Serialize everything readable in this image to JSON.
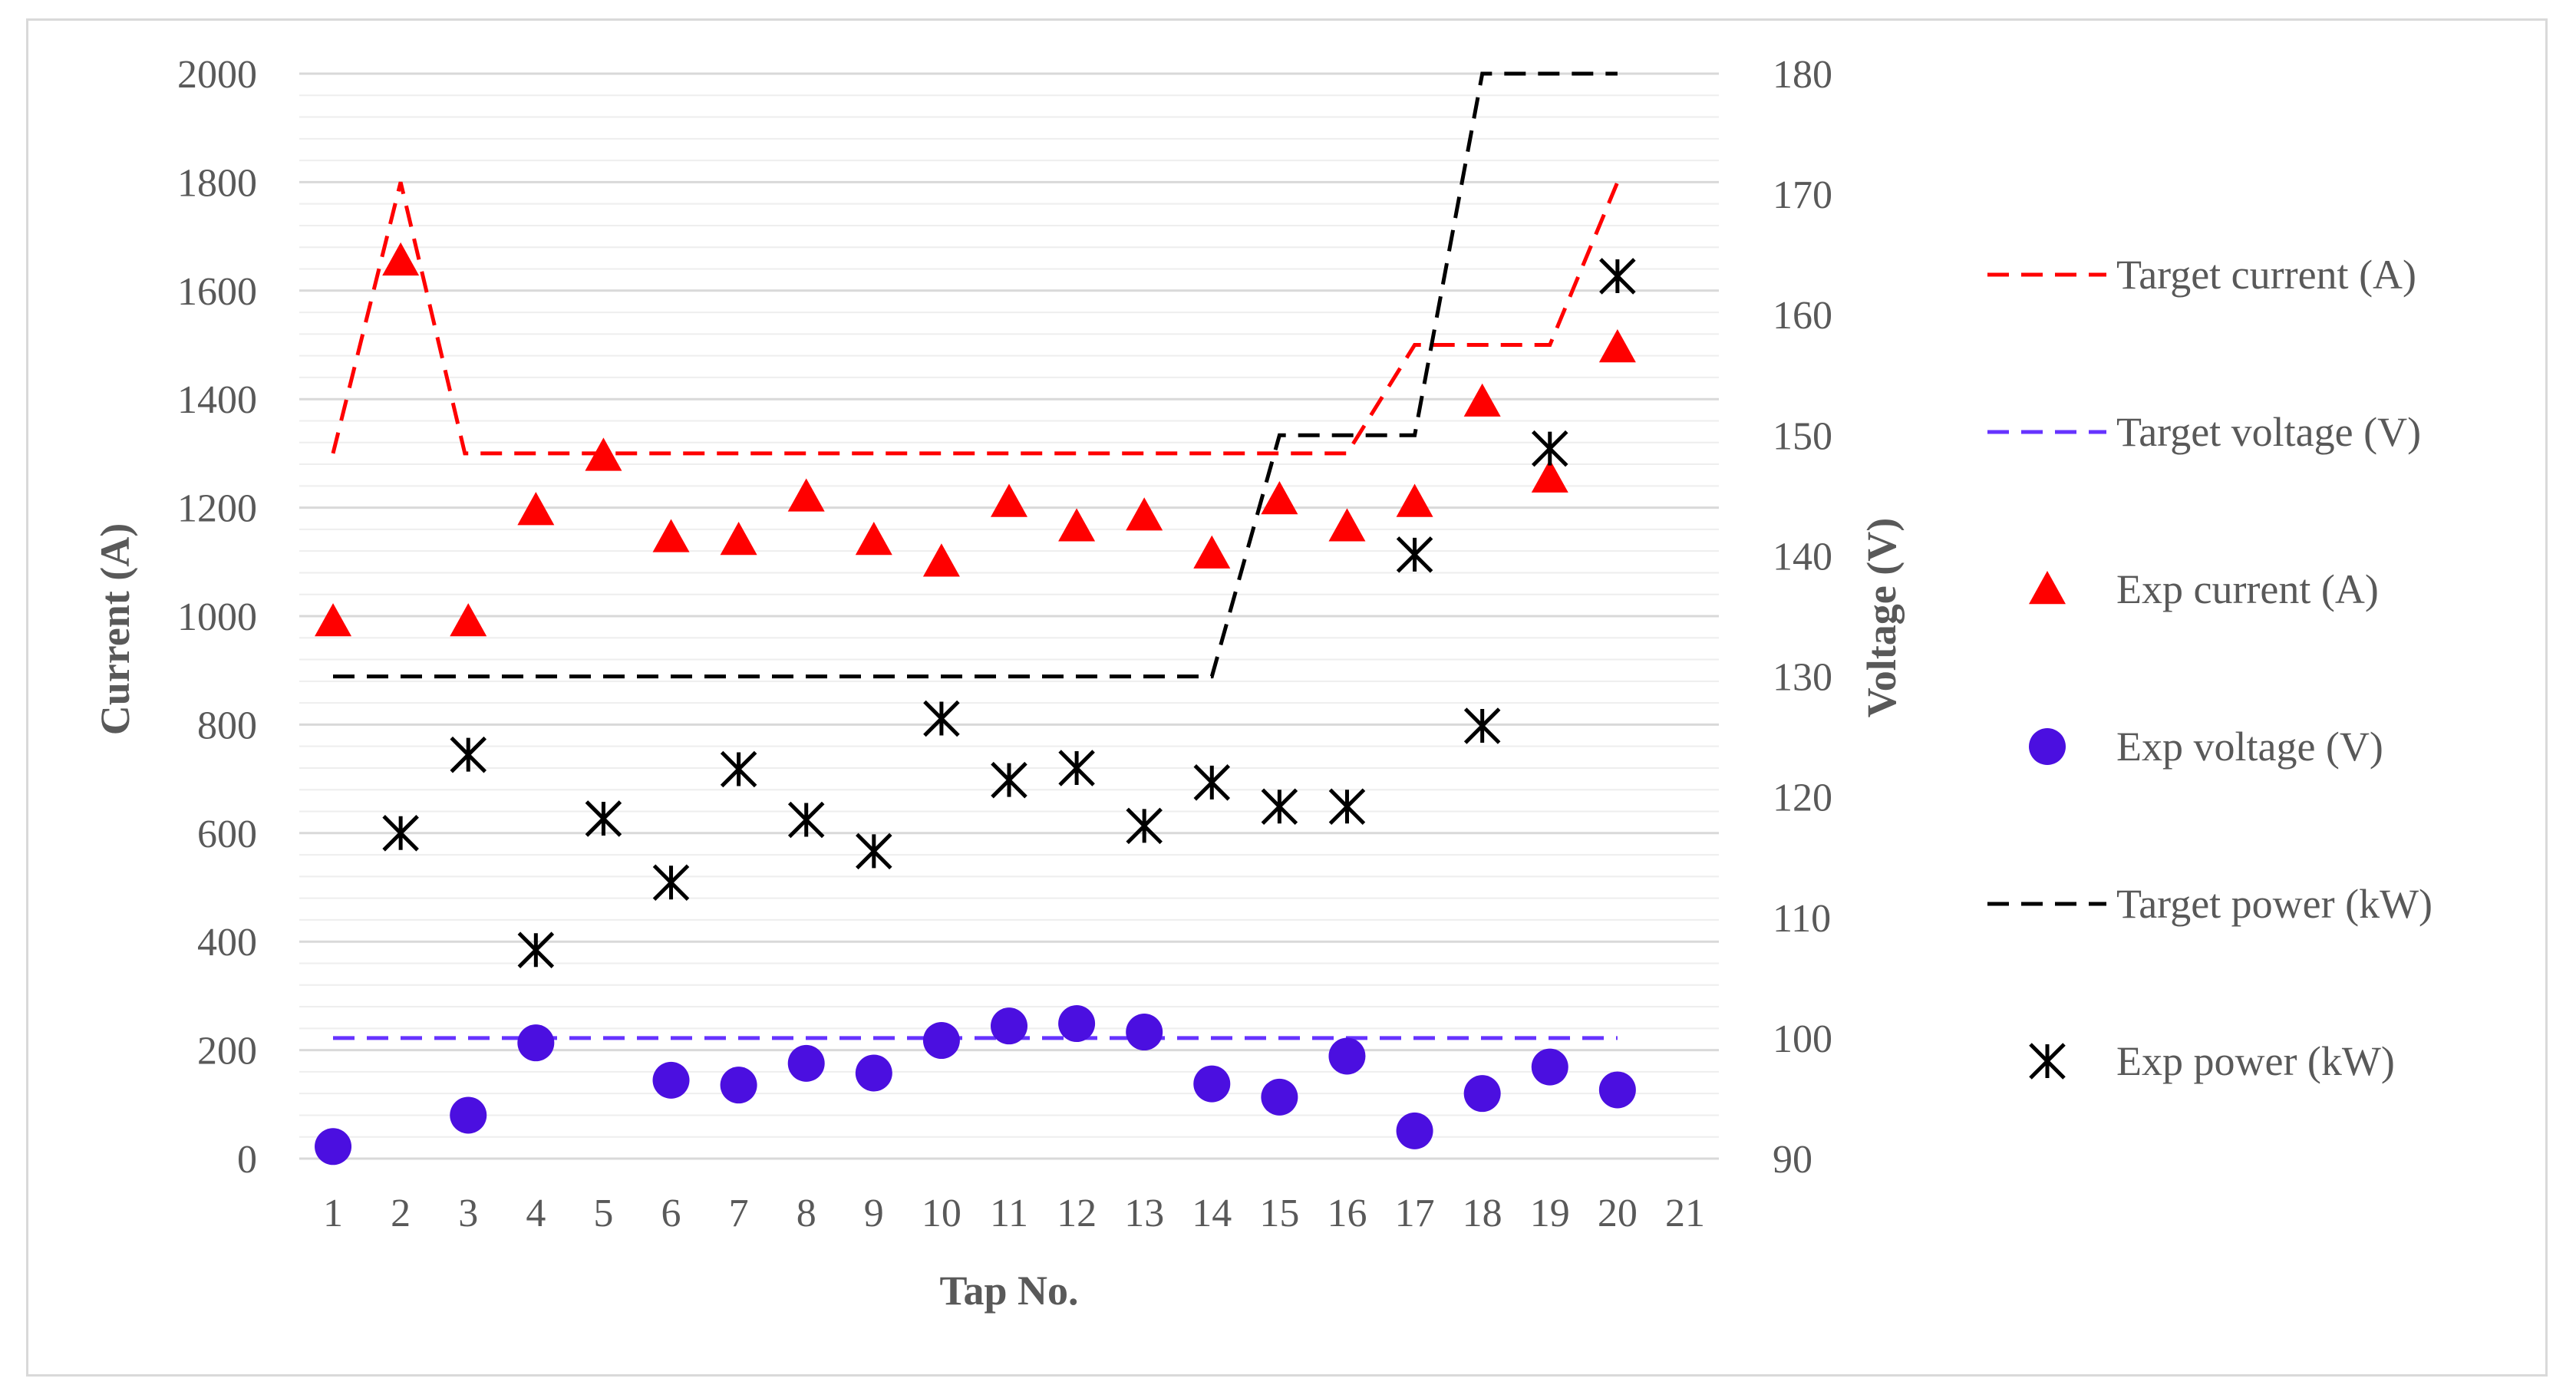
{
  "chart_data": {
    "type": "line",
    "title": "",
    "xlabel": "Tap No.",
    "ylabel": "Current (A)",
    "y2label": "Voltage (V)",
    "categories": [
      "1",
      "2",
      "3",
      "4",
      "5",
      "6",
      "7",
      "8",
      "9",
      "10",
      "11",
      "12",
      "13",
      "14",
      "15",
      "16",
      "17",
      "18",
      "19",
      "20",
      "21"
    ],
    "ylim": [
      0,
      2000
    ],
    "y2lim": [
      90,
      180
    ],
    "yticks": [
      0,
      200,
      400,
      600,
      800,
      1000,
      1200,
      1400,
      1600,
      1800,
      2000
    ],
    "y2ticks": [
      90,
      100,
      110,
      120,
      130,
      140,
      150,
      160,
      170,
      180
    ],
    "grid": true,
    "legend_position": "right",
    "series": [
      {
        "name": "Target current (A)",
        "style": "dashed-line",
        "color": "#ff0000",
        "axis": "left",
        "x": [
          1,
          2,
          2.95,
          3,
          15.9,
          16,
          17,
          18.9,
          19,
          20
        ],
        "values": [
          1300,
          1800,
          1300,
          1300,
          1300,
          1300,
          1500,
          1500,
          1500,
          1800
        ]
      },
      {
        "name": "Target voltage (V)",
        "style": "dashed-line",
        "color": "#6633ff",
        "axis": "right",
        "x": [
          1,
          20
        ],
        "values": [
          100,
          100
        ]
      },
      {
        "name": "Exp current (A)",
        "style": "triangle",
        "color": "#ff0000",
        "axis": "left",
        "x": [
          1,
          2,
          3,
          4,
          5,
          6,
          7,
          8,
          9,
          10,
          11,
          12,
          13,
          14,
          15,
          16,
          17,
          18,
          19,
          20
        ],
        "values": [
          990,
          1655,
          990,
          1195,
          1295,
          1145,
          1140,
          1220,
          1140,
          1100,
          1210,
          1165,
          1185,
          1115,
          1215,
          1165,
          1210,
          1395,
          1255,
          1495
        ]
      },
      {
        "name": "Exp voltage (V)",
        "style": "circle",
        "color": "#4b0fe0",
        "axis": "right",
        "x": [
          1,
          2,
          3,
          4,
          5,
          6,
          7,
          8,
          9,
          10,
          11,
          12,
          13,
          14,
          15,
          16,
          17,
          18,
          19,
          20
        ],
        "values": [
          91,
          null,
          93.6,
          99.6,
          null,
          96.5,
          96.1,
          97.9,
          97.1,
          99.8,
          101,
          101.2,
          100.5,
          96.2,
          95.1,
          98.5,
          92.3,
          95.4,
          97.6,
          95.7
        ]
      },
      {
        "name": "Target power (kW)",
        "style": "dashed-line",
        "color": "#000000",
        "axis": "right",
        "x": [
          1,
          14,
          15,
          16,
          17,
          18,
          20
        ],
        "values": [
          130,
          130,
          150,
          150,
          150,
          180,
          180
        ]
      },
      {
        "name": "Exp power (kW)",
        "style": "asterisk",
        "color": "#000000",
        "axis": "right",
        "x": [
          1,
          2,
          3,
          4,
          5,
          6,
          7,
          8,
          9,
          10,
          11,
          12,
          13,
          14,
          15,
          16,
          17,
          18,
          19,
          20
        ],
        "values": [
          null,
          117,
          123.5,
          107.3,
          118.2,
          112.9,
          122.3,
          118.1,
          115.5,
          126.5,
          121.4,
          122.4,
          117.6,
          121.2,
          119.2,
          119.2,
          140.1,
          125.9,
          148.9,
          163.2
        ]
      }
    ]
  }
}
